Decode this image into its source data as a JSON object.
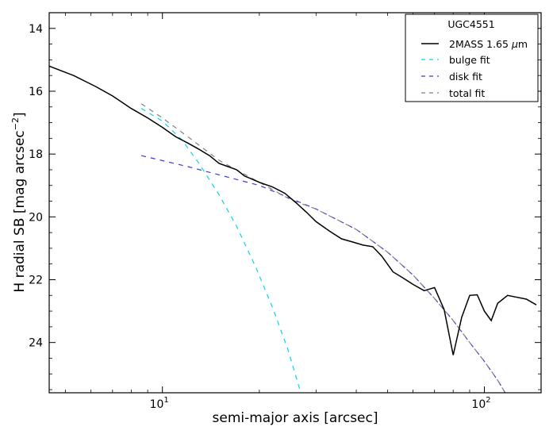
{
  "chart_data": {
    "type": "line",
    "title": "",
    "xlabel": "semi-major axis [arcsec]",
    "ylabel": "H radial SB [mag arcsec",
    "ylabel_sup": "−2",
    "ylabel_close": "]",
    "x_scale": "log",
    "xlim": [
      4.45,
      150
    ],
    "ylim": [
      25.6,
      13.5
    ],
    "y_inverted": true,
    "x_ticks": [
      {
        "value": 10,
        "base": "10",
        "exp": "1"
      },
      {
        "value": 100,
        "base": "10",
        "exp": "2"
      }
    ],
    "y_ticks": [
      14,
      16,
      18,
      20,
      22,
      24
    ],
    "grid": false,
    "legend_position": "upper right",
    "legend_title": "UGC4551",
    "series": [
      {
        "name": "2MASS 1.65 μm",
        "name_main": "2MASS 1.65 ",
        "name_symbol": "μ",
        "name_unit": "m",
        "color": "#000000",
        "style": "solid",
        "x": [
          4.45,
          5.3,
          6.2,
          7.0,
          8.0,
          9.0,
          10.0,
          11.0,
          12.0,
          13.0,
          14.0,
          15.0,
          16.0,
          17.0,
          18.0,
          19.0,
          20.0,
          22.0,
          24.0,
          26.0,
          28.0,
          30.0,
          33.0,
          36.0,
          39.0,
          42.0,
          45.0,
          48.0,
          52.0,
          56.0,
          60.0,
          65.0,
          70.0,
          75.0,
          80.0,
          85.0,
          90.0,
          95.0,
          100.0,
          105.0,
          110.0,
          118.0,
          125.0,
          135.0,
          145.0
        ],
        "y": [
          15.2,
          15.5,
          15.85,
          16.15,
          16.55,
          16.85,
          17.15,
          17.45,
          17.65,
          17.85,
          18.05,
          18.3,
          18.4,
          18.5,
          18.7,
          18.8,
          18.9,
          19.05,
          19.25,
          19.55,
          19.85,
          20.15,
          20.45,
          20.7,
          20.8,
          20.9,
          20.95,
          21.25,
          21.75,
          21.95,
          22.15,
          22.35,
          22.25,
          22.95,
          24.4,
          23.2,
          22.5,
          22.48,
          23.0,
          23.3,
          22.75,
          22.5,
          22.55,
          22.62,
          22.8
        ]
      },
      {
        "name": "bulge fit",
        "color": "#00d8e8",
        "style": "dashed",
        "x": [
          8.6,
          10,
          11.5,
          13,
          15,
          17,
          19.5,
          22,
          24.5,
          26.9
        ],
        "y": [
          16.55,
          16.95,
          17.55,
          18.3,
          19.3,
          20.3,
          21.6,
          22.9,
          24.2,
          25.6
        ]
      },
      {
        "name": "disk fit",
        "color": "#3a3ae0",
        "style": "dashed",
        "x": [
          8.6,
          12,
          20,
          30,
          40,
          50,
          60,
          70,
          80,
          90,
          100,
          110,
          116
        ],
        "y": [
          18.05,
          18.4,
          19.0,
          19.75,
          20.4,
          21.12,
          21.85,
          22.6,
          23.3,
          24.0,
          24.6,
          25.2,
          25.6
        ]
      },
      {
        "name": "total fit",
        "color": "#808080",
        "style": "dashed",
        "x": [
          8.6,
          10,
          12,
          15,
          20,
          25,
          30,
          40,
          50,
          60,
          70,
          80,
          90,
          100,
          110,
          116
        ],
        "y": [
          16.4,
          16.85,
          17.45,
          18.2,
          18.9,
          19.45,
          19.75,
          20.4,
          21.12,
          21.85,
          22.6,
          23.3,
          24.0,
          24.6,
          25.2,
          25.6
        ]
      }
    ]
  }
}
